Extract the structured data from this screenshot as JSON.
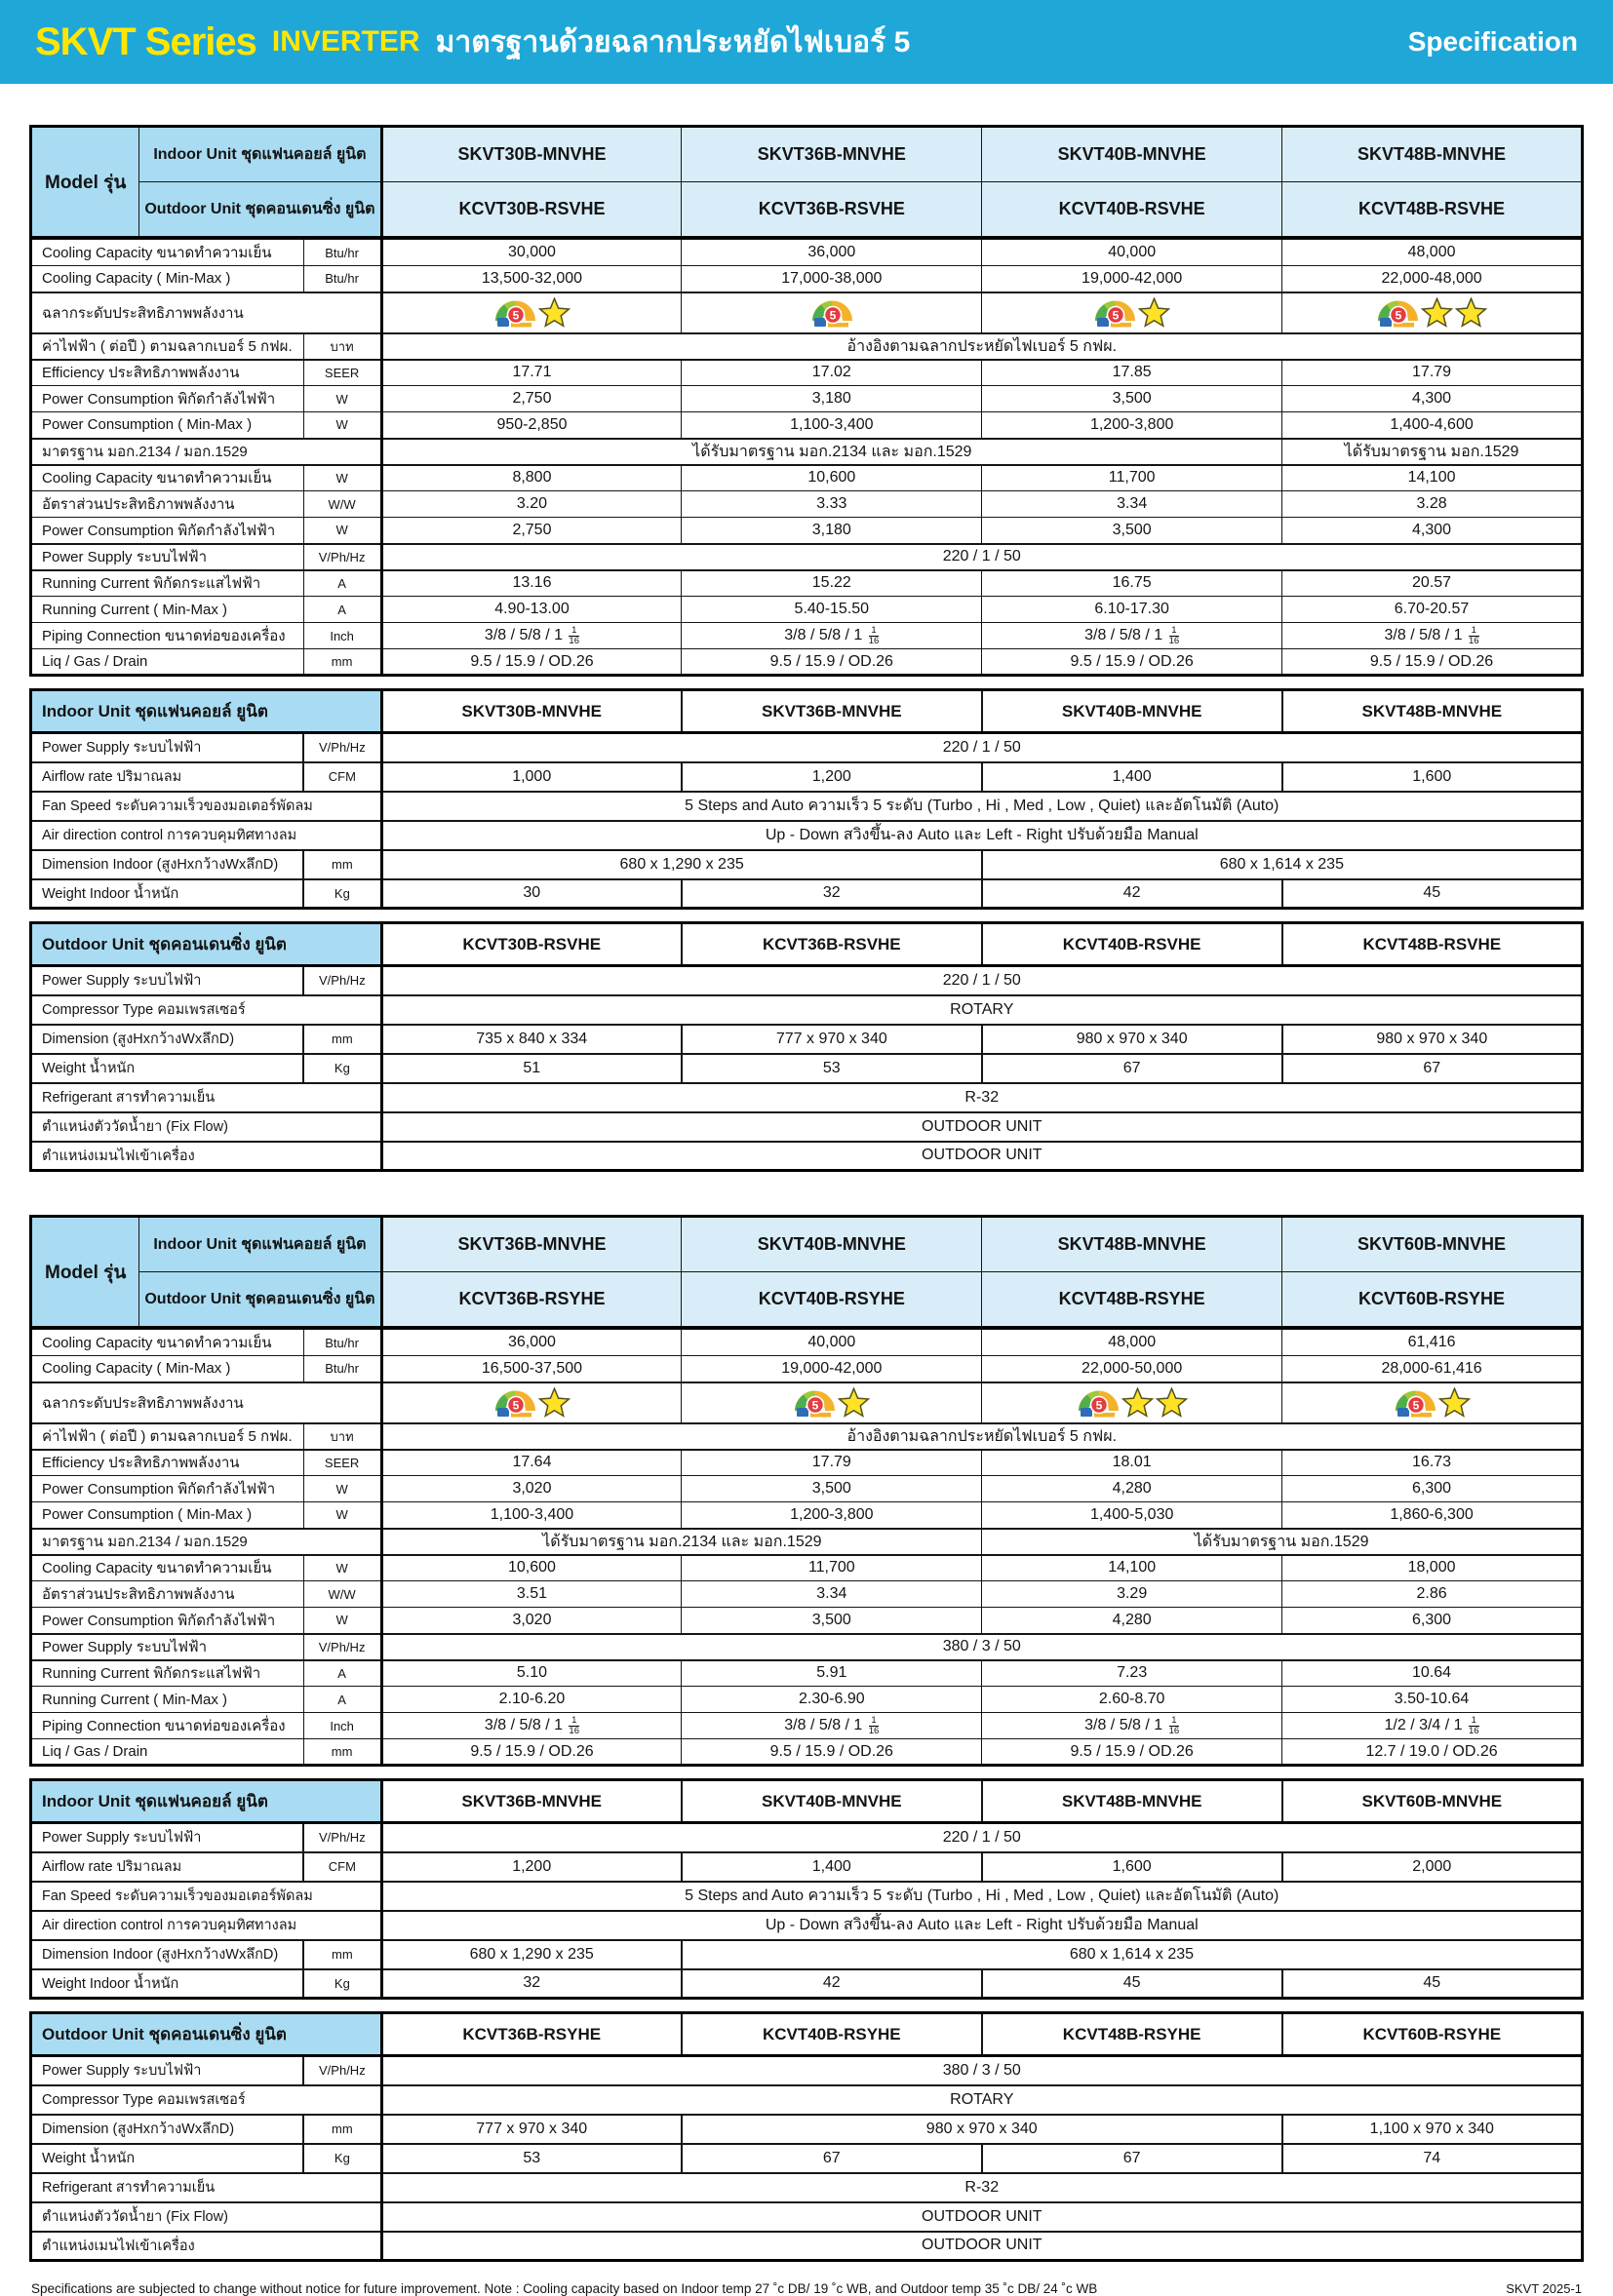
{
  "header": {
    "title_main": "SKVT Series",
    "title_inverter": "INVERTER",
    "title_thai": "มาตรฐานด้วยฉลากประหยัดไฟเบอร์ 5",
    "title_right": "Specification",
    "banner_color": "#1FA7D8",
    "accent_yellow": "#FFE600"
  },
  "labels": {
    "model": "Model รุ่น",
    "indoor_header": "Indoor Unit ชุดแฟนคอยล์ ยูนิต",
    "outdoor_header": "Outdoor Unit ชุดคอนเดนซิ่ง ยูนิต"
  },
  "icons": {
    "energy_label": "energy-label-5-icon",
    "star": "star-icon"
  },
  "colors": {
    "header_cell_blue": "#A9DCF2",
    "model_cell_blue": "#D9EDF9",
    "star_yellow": "#FFE226",
    "badge_red": "#E43D3F"
  },
  "tables": [
    {
      "indoor_models": [
        "SKVT30B-MNVHE",
        "SKVT36B-MNVHE",
        "SKVT40B-MNVHE",
        "SKVT48B-MNVHE"
      ],
      "outdoor_models": [
        "KCVT30B-RSVHE",
        "KCVT36B-RSVHE",
        "KCVT40B-RSVHE",
        "KCVT48B-RSVHE"
      ],
      "spec_rows": [
        {
          "label": "Cooling Capacity ขนาดทำความเย็น",
          "unit": "Btu/hr",
          "type": "values",
          "values": [
            "30,000",
            "36,000",
            "40,000",
            "48,000"
          ]
        },
        {
          "label": "Cooling Capacity ( Min-Max )",
          "unit": "Btu/hr",
          "type": "values",
          "values": [
            "13,500-32,000",
            "17,000-38,000",
            "19,000-42,000",
            "22,000-48,000"
          ]
        },
        {
          "label": "ฉลากระดับประสิทธิภาพพลังงาน",
          "labelspan": true,
          "type": "stars",
          "stars": [
            1,
            0,
            1,
            2
          ]
        },
        {
          "label": "ค่าไฟฟ้า ( ต่อปี ) ตามฉลากเบอร์ 5 กฟผ.",
          "unit": "บาท",
          "type": "span",
          "text": "อ้างอิงตามฉลากประหยัดไฟเบอร์ 5 กฟผ."
        },
        {
          "label": "Efficiency  ประสิทธิภาพพลังงาน",
          "unit": "SEER",
          "type": "values",
          "values": [
            "17.71",
            "17.02",
            "17.85",
            "17.79"
          ]
        },
        {
          "label": "Power Consumption พิกัดกำลังไฟฟ้า",
          "unit": "W",
          "type": "values",
          "values": [
            "2,750",
            "3,180",
            "3,500",
            "4,300"
          ]
        },
        {
          "label": "Power Consumption  ( Min-Max )",
          "unit": "W",
          "type": "values",
          "values": [
            "950-2,850",
            "1,100-3,400",
            "1,200-3,800",
            "1,400-4,600"
          ]
        },
        {
          "label": "มาตรฐาน มอก.2134 / มอก.1529",
          "labelspan": true,
          "type": "spans",
          "spans": [
            {
              "text": "ได้รับมาตรฐาน มอก.2134 และ มอก.1529",
              "cols": 3
            },
            {
              "text": "ได้รับมาตรฐาน มอก.1529",
              "cols": 1
            }
          ]
        },
        {
          "label": "Cooling Capacity  ขนาดทำความเย็น",
          "unit": "W",
          "type": "values",
          "values": [
            "8,800",
            "10,600",
            "11,700",
            "14,100"
          ]
        },
        {
          "label": "อัตราส่วนประสิทธิภาพพลังงาน",
          "unit": "W/W",
          "type": "values",
          "values": [
            "3.20",
            "3.33",
            "3.34",
            "3.28"
          ]
        },
        {
          "label": "Power Consumption พิกัดกำลังไฟฟ้า",
          "unit": "W",
          "type": "values",
          "values": [
            "2,750",
            "3,180",
            "3,500",
            "4,300"
          ]
        },
        {
          "label": "Power Supply ระบบไฟฟ้า",
          "unit": "V/Ph/Hz",
          "type": "span",
          "text": "220 / 1 / 50"
        },
        {
          "label": "Running Current พิกัดกระแสไฟฟ้า",
          "unit": "A",
          "type": "values",
          "values": [
            "13.16",
            "15.22",
            "16.75",
            "20.57"
          ]
        },
        {
          "label": "Running Current  ( Min-Max )",
          "unit": "A",
          "type": "values",
          "values": [
            "4.90-13.00",
            "5.40-15.50",
            "6.10-17.30",
            "6.70-20.57"
          ]
        },
        {
          "label": "Piping Connection  ขนาดท่อของเครื่อง",
          "unit": "Inch",
          "type": "piping",
          "values": [
            {
              "pre": "3/8 / 5/8 / 1",
              "num": "1",
              "den": "16"
            },
            {
              "pre": "3/8 / 5/8 / 1",
              "num": "1",
              "den": "16"
            },
            {
              "pre": "3/8 / 5/8 / 1",
              "num": "1",
              "den": "16"
            },
            {
              "pre": "3/8 / 5/8 / 1",
              "num": "1",
              "den": "16"
            }
          ]
        },
        {
          "label": "Liq / Gas / Drain",
          "unit": "mm",
          "type": "values",
          "values": [
            "9.5 / 15.9 / OD.26",
            "9.5 / 15.9 / OD.26",
            "9.5 / 15.9 / OD.26",
            "9.5 / 15.9 / OD.26"
          ]
        }
      ],
      "indoor_rows": [
        {
          "label": "Power Supply ระบบไฟฟ้า",
          "unit": "V/Ph/Hz",
          "type": "span",
          "text": "220 / 1 / 50"
        },
        {
          "label": "Airflow rate  ปริมาณลม",
          "unit": "CFM",
          "type": "values",
          "values": [
            "1,000",
            "1,200",
            "1,400",
            "1,600"
          ]
        },
        {
          "label": "Fan Speed  ระดับความเร็วของมอเตอร์พัดลม",
          "labelspan": true,
          "type": "span",
          "text": "5 Steps and Auto ความเร็ว 5 ระดับ (Turbo , Hi , Med , Low , Quiet) และอัตโนมัติ (Auto)"
        },
        {
          "label": "Air direction control   การควบคุมทิศทางลม",
          "labelspan": true,
          "type": "span",
          "text": "Up - Down สวิงขึ้น-ลง Auto และ Left - Right ปรับด้วยมือ Manual"
        },
        {
          "label": "Dimension Indoor (สูงHxกว้างWxลึกD)",
          "unit": "mm",
          "type": "spans",
          "spans": [
            {
              "text": "680 x 1,290 x 235",
              "cols": 2
            },
            {
              "text": "680 x 1,614 x 235",
              "cols": 2
            }
          ]
        },
        {
          "label": "Weight Indoor น้ำหนัก",
          "unit": "Kg",
          "type": "values",
          "values": [
            "30",
            "32",
            "42",
            "45"
          ]
        }
      ],
      "outdoor_rows": [
        {
          "label": "Power Supply ระบบไฟฟ้า",
          "unit": "V/Ph/Hz",
          "type": "span",
          "text": "220 / 1 / 50"
        },
        {
          "label": "Compressor Type คอมเพรสเซอร์",
          "labelspan": true,
          "type": "span",
          "text": "ROTARY"
        },
        {
          "label": "Dimension (สูงHxกว้างWxลึกD)",
          "unit": "mm",
          "type": "values",
          "values": [
            "735 x 840 x 334",
            "777 x 970 x 340",
            "980 x 970 x 340",
            "980 x 970 x 340"
          ]
        },
        {
          "label": "Weight  น้ำหนัก",
          "unit": "Kg",
          "type": "values",
          "values": [
            "51",
            "53",
            "67",
            "67"
          ]
        },
        {
          "label": "Refrigerant  สารทำความเย็น",
          "labelspan": true,
          "type": "span",
          "text": "R-32"
        },
        {
          "label": "ตำแหน่งตัววัดน้ำยา (Fix Flow)",
          "labelspan": true,
          "type": "span",
          "text": "OUTDOOR UNIT"
        },
        {
          "label": "ตำแหน่งเมนไฟเข้าเครื่อง",
          "labelspan": true,
          "type": "span",
          "text": "OUTDOOR UNIT"
        }
      ]
    },
    {
      "indoor_models": [
        "SKVT36B-MNVHE",
        "SKVT40B-MNVHE",
        "SKVT48B-MNVHE",
        "SKVT60B-MNVHE"
      ],
      "outdoor_models": [
        "KCVT36B-RSYHE",
        "KCVT40B-RSYHE",
        "KCVT48B-RSYHE",
        "KCVT60B-RSYHE"
      ],
      "spec_rows": [
        {
          "label": "Cooling Capacity ขนาดทำความเย็น",
          "unit": "Btu/hr",
          "type": "values",
          "values": [
            "36,000",
            "40,000",
            "48,000",
            "61,416"
          ]
        },
        {
          "label": "Cooling Capacity ( Min-Max )",
          "unit": "Btu/hr",
          "type": "values",
          "values": [
            "16,500-37,500",
            "19,000-42,000",
            "22,000-50,000",
            "28,000-61,416"
          ]
        },
        {
          "label": "ฉลากระดับประสิทธิภาพพลังงาน",
          "labelspan": true,
          "type": "stars",
          "stars": [
            1,
            1,
            2,
            1
          ]
        },
        {
          "label": "ค่าไฟฟ้า ( ต่อปี ) ตามฉลากเบอร์ 5 กฟผ.",
          "unit": "บาท",
          "type": "span",
          "text": "อ้างอิงตามฉลากประหยัดไฟเบอร์ 5 กฟผ."
        },
        {
          "label": "Efficiency  ประสิทธิภาพพลังงาน",
          "unit": "SEER",
          "type": "values",
          "values": [
            "17.64",
            "17.79",
            "18.01",
            "16.73"
          ]
        },
        {
          "label": "Power Consumption พิกัดกำลังไฟฟ้า",
          "unit": "W",
          "type": "values",
          "values": [
            "3,020",
            "3,500",
            "4,280",
            "6,300"
          ]
        },
        {
          "label": "Power Consumption  ( Min-Max )",
          "unit": "W",
          "type": "values",
          "values": [
            "1,100-3,400",
            "1,200-3,800",
            "1,400-5,030",
            "1,860-6,300"
          ]
        },
        {
          "label": "มาตรฐาน มอก.2134 / มอก.1529",
          "labelspan": true,
          "type": "spans",
          "spans": [
            {
              "text": "ได้รับมาตรฐาน มอก.2134 และ มอก.1529",
              "cols": 2
            },
            {
              "text": "ได้รับมาตรฐาน มอก.1529",
              "cols": 2
            }
          ]
        },
        {
          "label": "Cooling Capacity  ขนาดทำความเย็น",
          "unit": "W",
          "type": "values",
          "values": [
            "10,600",
            "11,700",
            "14,100",
            "18,000"
          ]
        },
        {
          "label": "อัตราส่วนประสิทธิภาพพลังงาน",
          "unit": "W/W",
          "type": "values",
          "values": [
            "3.51",
            "3.34",
            "3.29",
            "2.86"
          ]
        },
        {
          "label": "Power Consumption พิกัดกำลังไฟฟ้า",
          "unit": "W",
          "type": "values",
          "values": [
            "3,020",
            "3,500",
            "4,280",
            "6,300"
          ]
        },
        {
          "label": "Power Supply ระบบไฟฟ้า",
          "unit": "V/Ph/Hz",
          "type": "span",
          "text": "380 / 3 / 50"
        },
        {
          "label": "Running Current พิกัดกระแสไฟฟ้า",
          "unit": "A",
          "type": "values",
          "values": [
            "5.10",
            "5.91",
            "7.23",
            "10.64"
          ]
        },
        {
          "label": "Running Current  ( Min-Max )",
          "unit": "A",
          "type": "values",
          "values": [
            "2.10-6.20",
            "2.30-6.90",
            "2.60-8.70",
            "3.50-10.64"
          ]
        },
        {
          "label": "Piping Connection  ขนาดท่อของเครื่อง",
          "unit": "Inch",
          "type": "piping",
          "values": [
            {
              "pre": "3/8 / 5/8 / 1",
              "num": "1",
              "den": "16"
            },
            {
              "pre": "3/8 / 5/8 / 1",
              "num": "1",
              "den": "16"
            },
            {
              "pre": "3/8 / 5/8 / 1",
              "num": "1",
              "den": "16"
            },
            {
              "pre": "1/2 / 3/4 / 1",
              "num": "1",
              "den": "16"
            }
          ]
        },
        {
          "label": "Liq / Gas / Drain",
          "unit": "mm",
          "type": "values",
          "values": [
            "9.5 / 15.9 / OD.26",
            "9.5 / 15.9 / OD.26",
            "9.5 / 15.9 / OD.26",
            "12.7 / 19.0 / OD.26"
          ]
        }
      ],
      "indoor_rows": [
        {
          "label": "Power Supply ระบบไฟฟ้า",
          "unit": "V/Ph/Hz",
          "type": "span",
          "text": "220 / 1 / 50"
        },
        {
          "label": "Airflow rate  ปริมาณลม",
          "unit": "CFM",
          "type": "values",
          "values": [
            "1,200",
            "1,400",
            "1,600",
            "2,000"
          ]
        },
        {
          "label": "Fan Speed  ระดับความเร็วของมอเตอร์พัดลม",
          "labelspan": true,
          "type": "span",
          "text": "5 Steps and Auto ความเร็ว 5 ระดับ (Turbo , Hi , Med , Low , Quiet) และอัตโนมัติ (Auto)"
        },
        {
          "label": "Air direction control   การควบคุมทิศทางลม",
          "labelspan": true,
          "type": "span",
          "text": "Up - Down สวิงขึ้น-ลง Auto และ Left - Right ปรับด้วยมือ Manual"
        },
        {
          "label": "Dimension Indoor (สูงHxกว้างWxลึกD)",
          "unit": "mm",
          "type": "spans",
          "spans": [
            {
              "text": "680 x 1,290 x 235",
              "cols": 1
            },
            {
              "text": "680 x 1,614 x 235",
              "cols": 3
            }
          ]
        },
        {
          "label": "Weight Indoor น้ำหนัก",
          "unit": "Kg",
          "type": "values",
          "values": [
            "32",
            "42",
            "45",
            "45"
          ]
        }
      ],
      "outdoor_rows": [
        {
          "label": "Power Supply ระบบไฟฟ้า",
          "unit": "V/Ph/Hz",
          "type": "span",
          "text": "380 / 3 / 50"
        },
        {
          "label": "Compressor Type คอมเพรสเซอร์",
          "labelspan": true,
          "type": "span",
          "text": "ROTARY"
        },
        {
          "label": "Dimension (สูงHxกว้างWxลึกD)",
          "unit": "mm",
          "type": "spans",
          "spans": [
            {
              "text": "777 x 970 x 340",
              "cols": 1
            },
            {
              "text": "980 x 970 x 340",
              "cols": 2
            },
            {
              "text": "1,100 x 970 x 340",
              "cols": 1
            }
          ]
        },
        {
          "label": "Weight  น้ำหนัก",
          "unit": "Kg",
          "type": "values",
          "values": [
            "53",
            "67",
            "67",
            "74"
          ]
        },
        {
          "label": "Refrigerant  สารทำความเย็น",
          "labelspan": true,
          "type": "span",
          "text": "R-32"
        },
        {
          "label": "ตำแหน่งตัววัดน้ำยา (Fix Flow)",
          "labelspan": true,
          "type": "span",
          "text": "OUTDOOR UNIT"
        },
        {
          "label": "ตำแหน่งเมนไฟเข้าเครื่อง",
          "labelspan": true,
          "type": "span",
          "text": "OUTDOOR UNIT"
        }
      ]
    }
  ],
  "footer": {
    "note": "Specifications are subjected to change without notice for future improvement.  Note : Cooling capacity based on Indoor temp 27 ˚c DB/ 19 ˚c WB, and Outdoor temp 35 ˚c DB/ 24 ˚c WB",
    "code": "SKVT 2025-1"
  }
}
